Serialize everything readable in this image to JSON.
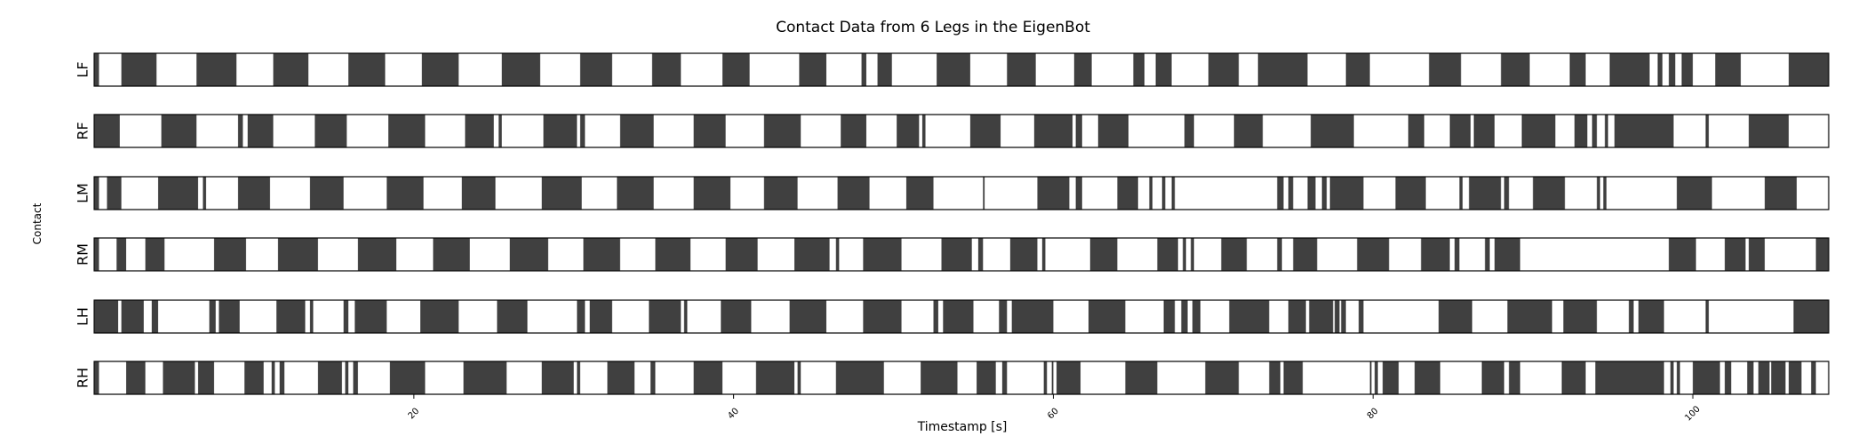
{
  "chart_data": {
    "type": "heatmap",
    "title": "Contact Data from 6 Legs in the EigenBot",
    "xlabel": "Timestamp [s]",
    "ylabel": "Contact",
    "xlim": [
      0,
      108.5
    ],
    "x_ticks": [
      20,
      40,
      60,
      80,
      100
    ],
    "x_tick_labels": [
      "20",
      "40",
      "60",
      "80",
      "100"
    ],
    "grid": false,
    "colors": {
      "contact": "#404040",
      "no_contact": "#ffffff",
      "frame": "#000000"
    },
    "legs": [
      {
        "name": "LF",
        "contact_intervals": [
          [
            0,
            0.3
          ],
          [
            1.7,
            3.9
          ],
          [
            6.4,
            8.9
          ],
          [
            11.2,
            13.4
          ],
          [
            15.9,
            18.2
          ],
          [
            20.5,
            22.8
          ],
          [
            25.5,
            27.9
          ],
          [
            30.4,
            32.4
          ],
          [
            34.9,
            36.7
          ],
          [
            39.3,
            41.0
          ],
          [
            44.1,
            45.8
          ],
          [
            48.0,
            48.3
          ],
          [
            49.0,
            49.9
          ],
          [
            52.7,
            54.8
          ],
          [
            57.1,
            58.9
          ],
          [
            61.3,
            62.4
          ],
          [
            65.0,
            65.7
          ],
          [
            66.4,
            67.4
          ],
          [
            69.7,
            71.6
          ],
          [
            72.8,
            75.9
          ],
          [
            78.3,
            79.8
          ],
          [
            83.5,
            85.5
          ],
          [
            88.0,
            89.8
          ],
          [
            92.3,
            93.3
          ],
          [
            94.8,
            97.3
          ],
          [
            97.8,
            98.1
          ],
          [
            98.5,
            98.9
          ],
          [
            99.3,
            100.0
          ],
          [
            101.4,
            103.0
          ],
          [
            106.0,
            108.5
          ]
        ]
      },
      {
        "name": "RF",
        "contact_intervals": [
          [
            0,
            1.6
          ],
          [
            4.2,
            6.4
          ],
          [
            9.0,
            9.3
          ],
          [
            9.6,
            11.2
          ],
          [
            13.8,
            15.8
          ],
          [
            18.4,
            20.7
          ],
          [
            23.2,
            25.0
          ],
          [
            25.3,
            25.5
          ],
          [
            28.1,
            30.2
          ],
          [
            30.4,
            30.7
          ],
          [
            32.9,
            35.0
          ],
          [
            37.5,
            39.5
          ],
          [
            41.9,
            44.2
          ],
          [
            46.7,
            48.3
          ],
          [
            50.2,
            51.6
          ],
          [
            51.8,
            52.0
          ],
          [
            54.8,
            56.7
          ],
          [
            58.8,
            61.2
          ],
          [
            61.4,
            61.8
          ],
          [
            62.8,
            64.7
          ],
          [
            68.2,
            68.8
          ],
          [
            71.3,
            73.1
          ],
          [
            76.1,
            78.8
          ],
          [
            82.2,
            83.2
          ],
          [
            84.8,
            86.1
          ],
          [
            86.3,
            87.6
          ],
          [
            89.3,
            91.4
          ],
          [
            92.6,
            93.4
          ],
          [
            93.7,
            94.0
          ],
          [
            94.5,
            94.7
          ],
          [
            95.1,
            98.8
          ],
          [
            100.8,
            101.0
          ],
          [
            103.5,
            106.0
          ]
        ]
      },
      {
        "name": "LM",
        "contact_intervals": [
          [
            0,
            0.3
          ],
          [
            0.8,
            1.7
          ],
          [
            4.0,
            6.5
          ],
          [
            6.8,
            7.0
          ],
          [
            9.0,
            11.0
          ],
          [
            13.5,
            15.6
          ],
          [
            18.3,
            20.6
          ],
          [
            23.0,
            25.1
          ],
          [
            28.0,
            30.5
          ],
          [
            32.7,
            35.0
          ],
          [
            37.5,
            39.8
          ],
          [
            41.9,
            44.0
          ],
          [
            46.5,
            48.5
          ],
          [
            50.8,
            52.5
          ],
          [
            55.6,
            55.7
          ],
          [
            59.0,
            61.0
          ],
          [
            61.4,
            61.8
          ],
          [
            64.0,
            65.3
          ],
          [
            66.0,
            66.2
          ],
          [
            66.8,
            67.0
          ],
          [
            67.4,
            67.6
          ],
          [
            74.0,
            74.4
          ],
          [
            74.7,
            75.0
          ],
          [
            75.9,
            76.4
          ],
          [
            76.8,
            77.1
          ],
          [
            77.3,
            79.4
          ],
          [
            81.4,
            83.3
          ],
          [
            85.4,
            85.6
          ],
          [
            86.0,
            88.0
          ],
          [
            88.2,
            88.5
          ],
          [
            90.0,
            92.0
          ],
          [
            94.0,
            94.2
          ],
          [
            94.4,
            94.6
          ],
          [
            99.0,
            101.2
          ],
          [
            104.5,
            106.5
          ]
        ]
      },
      {
        "name": "RM",
        "contact_intervals": [
          [
            0,
            0.3
          ],
          [
            1.4,
            2.0
          ],
          [
            3.2,
            4.4
          ],
          [
            7.5,
            9.5
          ],
          [
            11.5,
            14.0
          ],
          [
            16.5,
            18.9
          ],
          [
            21.2,
            23.5
          ],
          [
            26.0,
            28.4
          ],
          [
            30.6,
            32.9
          ],
          [
            35.1,
            37.3
          ],
          [
            39.5,
            41.5
          ],
          [
            43.8,
            46.0
          ],
          [
            46.4,
            46.6
          ],
          [
            48.1,
            50.5
          ],
          [
            53.0,
            54.9
          ],
          [
            55.3,
            55.6
          ],
          [
            57.3,
            59.0
          ],
          [
            59.3,
            59.5
          ],
          [
            62.3,
            64.0
          ],
          [
            66.5,
            67.8
          ],
          [
            68.1,
            68.3
          ],
          [
            68.6,
            68.8
          ],
          [
            70.5,
            72.1
          ],
          [
            74.0,
            74.3
          ],
          [
            75.0,
            76.5
          ],
          [
            79.0,
            81.0
          ],
          [
            83.0,
            84.8
          ],
          [
            85.1,
            85.4
          ],
          [
            87.0,
            87.3
          ],
          [
            87.6,
            89.2
          ],
          [
            98.5,
            100.2
          ],
          [
            102.0,
            103.3
          ],
          [
            103.5,
            104.5
          ],
          [
            107.7,
            108.5
          ]
        ]
      },
      {
        "name": "LH",
        "contact_intervals": [
          [
            0,
            1.5
          ],
          [
            1.7,
            3.1
          ],
          [
            3.6,
            4.0
          ],
          [
            7.2,
            7.6
          ],
          [
            7.8,
            9.1
          ],
          [
            11.4,
            13.2
          ],
          [
            13.5,
            13.7
          ],
          [
            15.6,
            15.9
          ],
          [
            16.3,
            18.3
          ],
          [
            20.4,
            22.8
          ],
          [
            25.2,
            27.1
          ],
          [
            30.2,
            30.7
          ],
          [
            31.0,
            32.4
          ],
          [
            34.7,
            36.7
          ],
          [
            36.9,
            37.1
          ],
          [
            39.2,
            41.1
          ],
          [
            43.5,
            45.8
          ],
          [
            48.1,
            50.5
          ],
          [
            52.5,
            52.8
          ],
          [
            53.1,
            55.0
          ],
          [
            56.6,
            57.1
          ],
          [
            57.4,
            60.0
          ],
          [
            62.2,
            64.5
          ],
          [
            66.9,
            67.6
          ],
          [
            68.0,
            68.4
          ],
          [
            68.7,
            69.2
          ],
          [
            71.0,
            73.5
          ],
          [
            74.7,
            75.8
          ],
          [
            76.0,
            77.5
          ],
          [
            77.6,
            77.9
          ],
          [
            78.0,
            78.3
          ],
          [
            79.1,
            79.4
          ],
          [
            84.1,
            86.2
          ],
          [
            88.4,
            91.2
          ],
          [
            91.9,
            94.0
          ],
          [
            96.0,
            96.3
          ],
          [
            96.6,
            98.2
          ],
          [
            100.8,
            101.0
          ],
          [
            106.3,
            108.5
          ]
        ]
      },
      {
        "name": "RH",
        "contact_intervals": [
          [
            0,
            0.3
          ],
          [
            2.0,
            3.2
          ],
          [
            4.3,
            6.3
          ],
          [
            6.5,
            7.5
          ],
          [
            9.4,
            10.6
          ],
          [
            11.1,
            11.3
          ],
          [
            11.6,
            11.9
          ],
          [
            14.0,
            15.5
          ],
          [
            15.7,
            15.9
          ],
          [
            16.2,
            16.5
          ],
          [
            18.5,
            20.7
          ],
          [
            23.1,
            25.8
          ],
          [
            28.0,
            30.0
          ],
          [
            30.2,
            30.4
          ],
          [
            32.1,
            33.8
          ],
          [
            34.8,
            35.1
          ],
          [
            37.5,
            39.3
          ],
          [
            41.4,
            43.8
          ],
          [
            44.0,
            44.2
          ],
          [
            46.4,
            49.4
          ],
          [
            51.7,
            54.0
          ],
          [
            55.2,
            56.4
          ],
          [
            56.8,
            57.1
          ],
          [
            59.4,
            59.6
          ],
          [
            59.9,
            60.0
          ],
          [
            60.2,
            61.7
          ],
          [
            64.5,
            66.5
          ],
          [
            69.5,
            71.6
          ],
          [
            73.5,
            74.2
          ],
          [
            74.4,
            75.6
          ],
          [
            79.8,
            79.9
          ],
          [
            80.1,
            80.3
          ],
          [
            80.6,
            81.6
          ],
          [
            82.6,
            84.2
          ],
          [
            86.8,
            88.2
          ],
          [
            88.5,
            89.2
          ],
          [
            91.8,
            93.3
          ],
          [
            93.9,
            98.2
          ],
          [
            98.6,
            98.8
          ],
          [
            99.0,
            99.2
          ],
          [
            100.0,
            101.7
          ],
          [
            102.0,
            102.4
          ],
          [
            103.4,
            103.8
          ],
          [
            104.1,
            104.8
          ],
          [
            104.9,
            105.8
          ],
          [
            106.0,
            106.8
          ],
          [
            107.4,
            107.7
          ]
        ]
      }
    ]
  }
}
